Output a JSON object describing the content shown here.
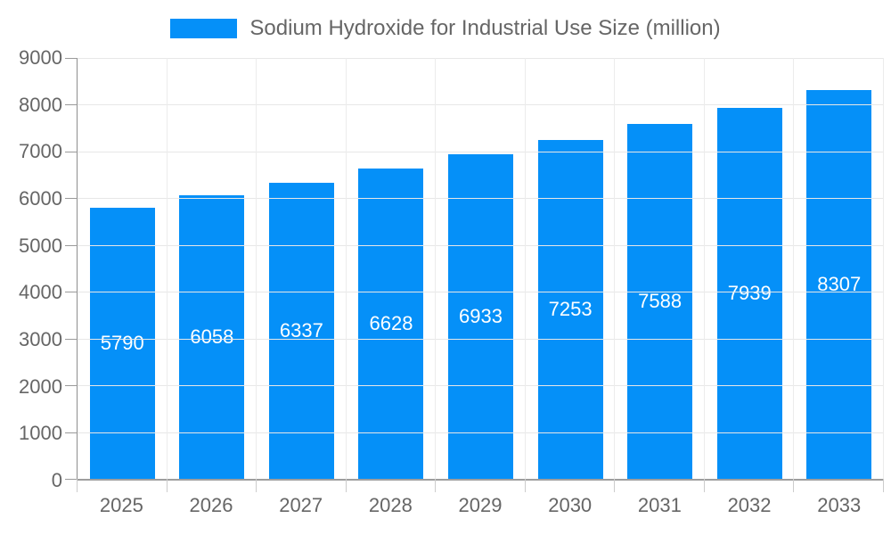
{
  "legend": {
    "label": "Sodium Hydroxide for Industrial Use Size (million)"
  },
  "chart_data": {
    "type": "bar",
    "title": "Sodium Hydroxide for Industrial Use Size (million)",
    "categories": [
      "2025",
      "2026",
      "2027",
      "2028",
      "2029",
      "2030",
      "2031",
      "2032",
      "2033"
    ],
    "values": [
      5790,
      6058,
      6337,
      6628,
      6933,
      7253,
      7588,
      7939,
      8307
    ],
    "xlabel": "",
    "ylabel": "",
    "ylim": [
      0,
      9000
    ],
    "ytick_interval": 1000,
    "ytick_labels": [
      "0",
      "1000",
      "2000",
      "3000",
      "4000",
      "5000",
      "6000",
      "7000",
      "8000",
      "9000"
    ],
    "grid": true,
    "legend_position": "top-center",
    "value_label_position": "inside-center",
    "colors": {
      "bar": "#0590F8",
      "grid_h": "#e7e7e7",
      "grid_v": "#ececec",
      "axis": "#8e8e8e",
      "y_tick": "#9a9a9a",
      "x_tick": "#cccccc",
      "axis_text": "#666666",
      "value_label": "#ffffff",
      "background": "#ffffff"
    }
  }
}
